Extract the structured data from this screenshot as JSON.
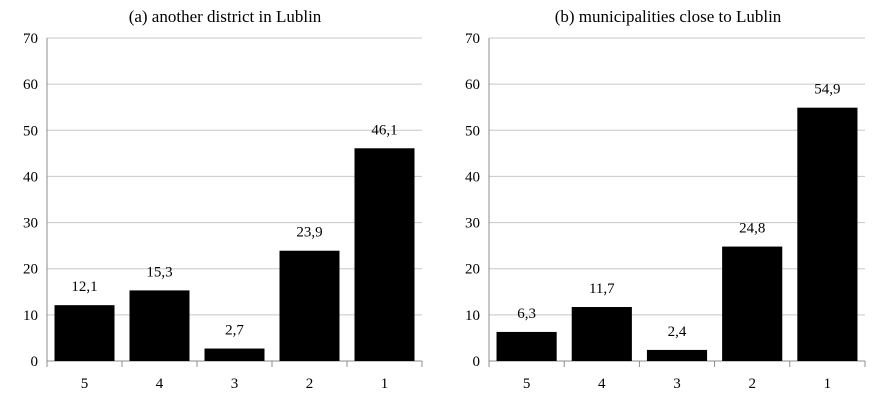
{
  "chart_data": [
    {
      "type": "bar",
      "title": "(a) another district in Lublin",
      "categories": [
        "5",
        "4",
        "3",
        "2",
        "1"
      ],
      "values": [
        12.1,
        15.3,
        2.7,
        23.9,
        46.1
      ],
      "data_labels": [
        "12,1",
        "15,3",
        "2,7",
        "23,9",
        "46,1"
      ],
      "yticks": [
        "0",
        "10",
        "20",
        "30",
        "40",
        "50",
        "60",
        "70"
      ],
      "ylim": [
        0,
        70
      ],
      "xlabel": "",
      "ylabel": "",
      "grid": true,
      "bar_color": "#000000"
    },
    {
      "type": "bar",
      "title": "(b) municipalities close to Lublin",
      "categories": [
        "5",
        "4",
        "3",
        "2",
        "1"
      ],
      "values": [
        6.3,
        11.7,
        2.4,
        24.8,
        54.9
      ],
      "data_labels": [
        "6,3",
        "11,7",
        "2,4",
        "24,8",
        "54,9"
      ],
      "yticks": [
        "0",
        "10",
        "20",
        "30",
        "40",
        "50",
        "60",
        "70"
      ],
      "ylim": [
        0,
        70
      ],
      "xlabel": "",
      "ylabel": "",
      "grid": true,
      "bar_color": "#000000"
    }
  ]
}
